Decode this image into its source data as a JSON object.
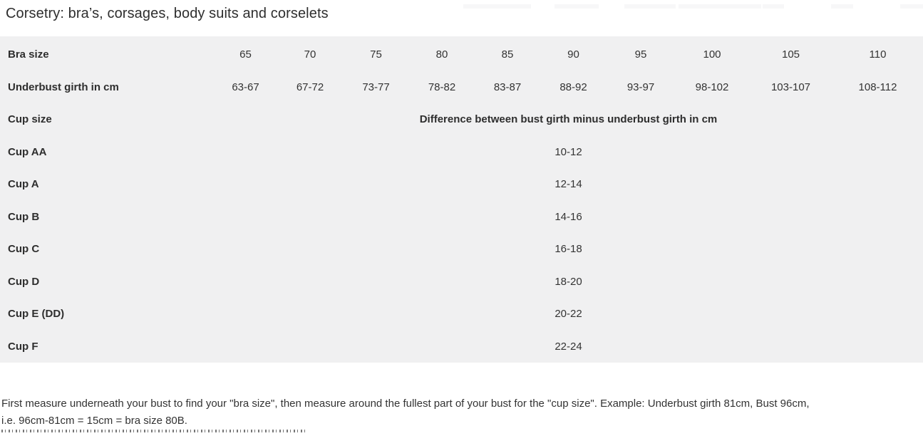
{
  "title": "Corsetry: bra’s, corsages, body suits and corselets",
  "colors": {
    "page_background": "#ffffff",
    "table_background": "#f0f0f1",
    "text_primary": "#2e2e2e",
    "text_secondary": "#333333",
    "fragment_gray": "#f7f7f8"
  },
  "size_chart": {
    "bra_size": {
      "label": "Bra size",
      "values": [
        "65",
        "70",
        "75",
        "80",
        "85",
        "90",
        "95",
        "100",
        "105",
        "110"
      ]
    },
    "underbust": {
      "label": "Underbust girth in cm",
      "values": [
        "63-67",
        "67-72",
        "73-77",
        "78-82",
        "83-87",
        "88-92",
        "93-97",
        "98-102",
        "103-107",
        "108-112"
      ]
    },
    "cup_size": {
      "label": "Cup size",
      "merged_text": "Difference between bust girth minus underbust girth in cm"
    },
    "cup_rows": [
      {
        "label": "Cup AA",
        "value": "10-12"
      },
      {
        "label": "Cup A",
        "value": "12-14"
      },
      {
        "label": "Cup B",
        "value": "14-16"
      },
      {
        "label": "Cup C",
        "value": "16-18"
      },
      {
        "label": "Cup D",
        "value": "18-20"
      },
      {
        "label": "Cup E (DD)",
        "value": "20-22"
      },
      {
        "label": "Cup F",
        "value": "22-24"
      }
    ]
  },
  "footer": {
    "lines": [
      "First measure underneath your bust to find your \"bra size\", then measure around the fullest part of your bust for the \"cup size\". Example: Underbust girth 81cm, Bust 96cm,",
      "i.e. 96cm-81cm = 15cm = bra size 80B."
    ]
  }
}
